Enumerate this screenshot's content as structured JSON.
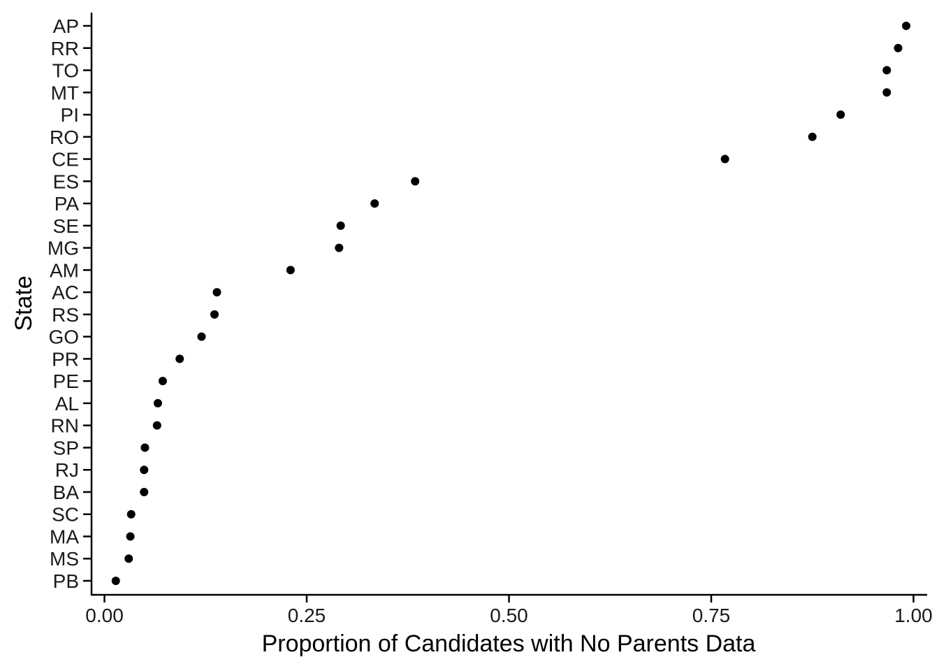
{
  "chart_data": {
    "type": "scatter",
    "title": "",
    "xlabel": "Proportion of Candidates with No Parents Data",
    "ylabel": "State",
    "xlim": [
      -0.016,
      1.016
    ],
    "x_ticks": [
      {
        "value": 0.0,
        "label": "0.00"
      },
      {
        "value": 0.25,
        "label": "0.25"
      },
      {
        "value": 0.5,
        "label": "0.50"
      },
      {
        "value": 0.75,
        "label": "0.75"
      },
      {
        "value": 1.0,
        "label": "1.00"
      }
    ],
    "categories": [
      "AP",
      "RR",
      "TO",
      "MT",
      "PI",
      "RO",
      "CE",
      "ES",
      "PA",
      "SE",
      "MG",
      "AM",
      "AC",
      "RS",
      "GO",
      "PR",
      "PE",
      "AL",
      "RN",
      "SP",
      "RJ",
      "BA",
      "SC",
      "MA",
      "MS",
      "PB"
    ],
    "values": [
      0.991,
      0.981,
      0.967,
      0.967,
      0.91,
      0.875,
      0.767,
      0.384,
      0.334,
      0.292,
      0.29,
      0.23,
      0.139,
      0.136,
      0.12,
      0.093,
      0.072,
      0.066,
      0.065,
      0.05,
      0.049,
      0.049,
      0.033,
      0.032,
      0.03,
      0.014
    ],
    "grid": false,
    "legend": "none",
    "point_color": "#000000"
  }
}
